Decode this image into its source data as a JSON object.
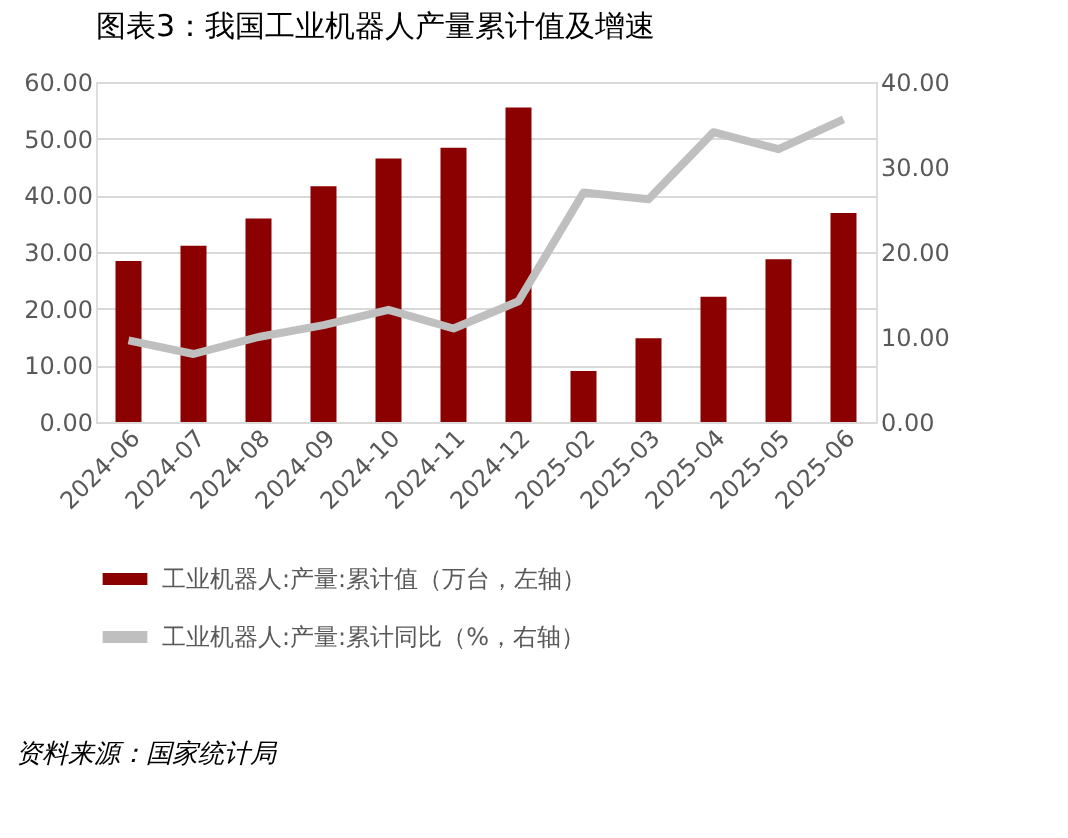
{
  "chart_data": {
    "type": "bar",
    "title": "图表3：我国工业机器人产量累计值及增速",
    "categories": [
      "2024-06",
      "2024-07",
      "2024-08",
      "2024-09",
      "2024-10",
      "2024-11",
      "2024-12",
      "2025-02",
      "2025-03",
      "2025-04",
      "2025-05",
      "2025-06"
    ],
    "series": [
      {
        "name": "工业机器人:产量:累计值（万台，左轴）",
        "type": "bar",
        "color": "#8b0000",
        "values": [
          28.4,
          31.1,
          35.9,
          41.6,
          46.5,
          48.4,
          55.5,
          9.0,
          14.8,
          22.1,
          28.7,
          36.9
        ]
      },
      {
        "name": "工业机器人:产量:累计同比（%，右轴）",
        "type": "line",
        "axis": "y2",
        "color": "#bfbfbf",
        "values": [
          9.6,
          8.0,
          10.0,
          11.4,
          13.2,
          11.0,
          14.2,
          27.0,
          26.2,
          34.1,
          32.1,
          35.6
        ]
      }
    ],
    "ylim": [
      0,
      60
    ],
    "yticks": [
      {
        "value": 0,
        "label": "0.00"
      },
      {
        "value": 10,
        "label": "10.00"
      },
      {
        "value": 20,
        "label": "20.00"
      },
      {
        "value": 30,
        "label": "30.00"
      },
      {
        "value": 40,
        "label": "40.00"
      },
      {
        "value": 50,
        "label": "50.00"
      },
      {
        "value": 60,
        "label": "60.00"
      }
    ],
    "y2lim": [
      0,
      40
    ],
    "y2ticks": [
      {
        "value": 0,
        "label": "0.00"
      },
      {
        "value": 10,
        "label": "10.00"
      },
      {
        "value": 20,
        "label": "20.00"
      },
      {
        "value": 30,
        "label": "30.00"
      },
      {
        "value": 40,
        "label": "40.00"
      }
    ],
    "grid": "y",
    "legend": "bottom",
    "annotations": [
      "资料来源：国家统计局"
    ]
  }
}
